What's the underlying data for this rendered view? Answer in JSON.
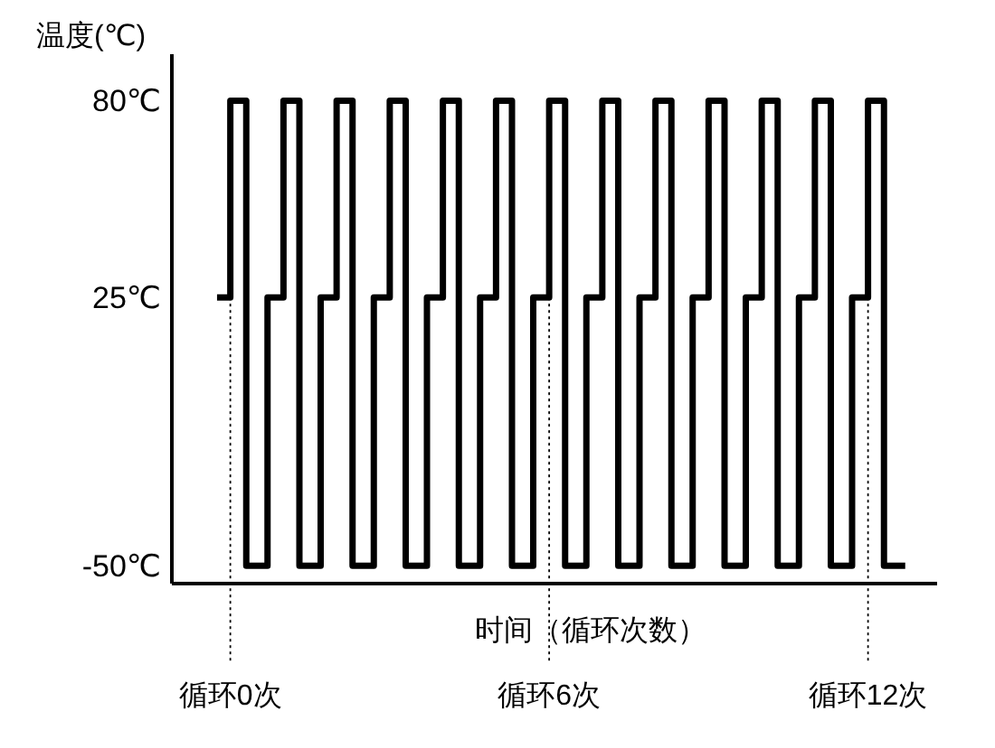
{
  "chart_data": {
    "type": "step",
    "ylabel": "温度(℃)",
    "xlabel": "时间（循环次数）",
    "xlim": [
      -1.1,
      13.3
    ],
    "ylim": [
      -55,
      93
    ],
    "yticks": [
      {
        "value": 80,
        "label": "80℃"
      },
      {
        "value": 25,
        "label": "25℃"
      },
      {
        "value": -50,
        "label": "-50℃"
      }
    ],
    "tick_labels": "y",
    "grid": false,
    "marker": "none",
    "line_style": "solid",
    "series": [
      {
        "color": "#000000",
        "x": [
          -0.25,
          0,
          0.3,
          0.7,
          1,
          1.3,
          1.7,
          2,
          2.3,
          2.7,
          3,
          3.3,
          3.7,
          4,
          4.3,
          4.7,
          5,
          5.3,
          5.7,
          6,
          6.3,
          6.7,
          7,
          7.3,
          7.7,
          8,
          8.3,
          8.7,
          9,
          9.3,
          9.7,
          10,
          10.3,
          10.7,
          11,
          11.3,
          11.7,
          12,
          12.3,
          12.7
        ],
        "values": [
          25,
          80,
          -50,
          25,
          80,
          -50,
          25,
          80,
          -50,
          25,
          80,
          -50,
          25,
          80,
          -50,
          25,
          80,
          -50,
          25,
          80,
          -50,
          25,
          80,
          -50,
          25,
          80,
          -50,
          25,
          80,
          -50,
          25,
          80,
          -50,
          25,
          80,
          -50,
          25,
          80,
          -50,
          -50
        ]
      }
    ],
    "ref_lines": [
      {
        "axis": "x",
        "value": 0,
        "label": "循环0次",
        "line_style": "dotted"
      },
      {
        "axis": "x",
        "value": 6,
        "label": "循环6次",
        "line_style": "dotted"
      },
      {
        "axis": "x",
        "value": 12,
        "label": "循环12次",
        "line_style": "dotted"
      }
    ]
  }
}
